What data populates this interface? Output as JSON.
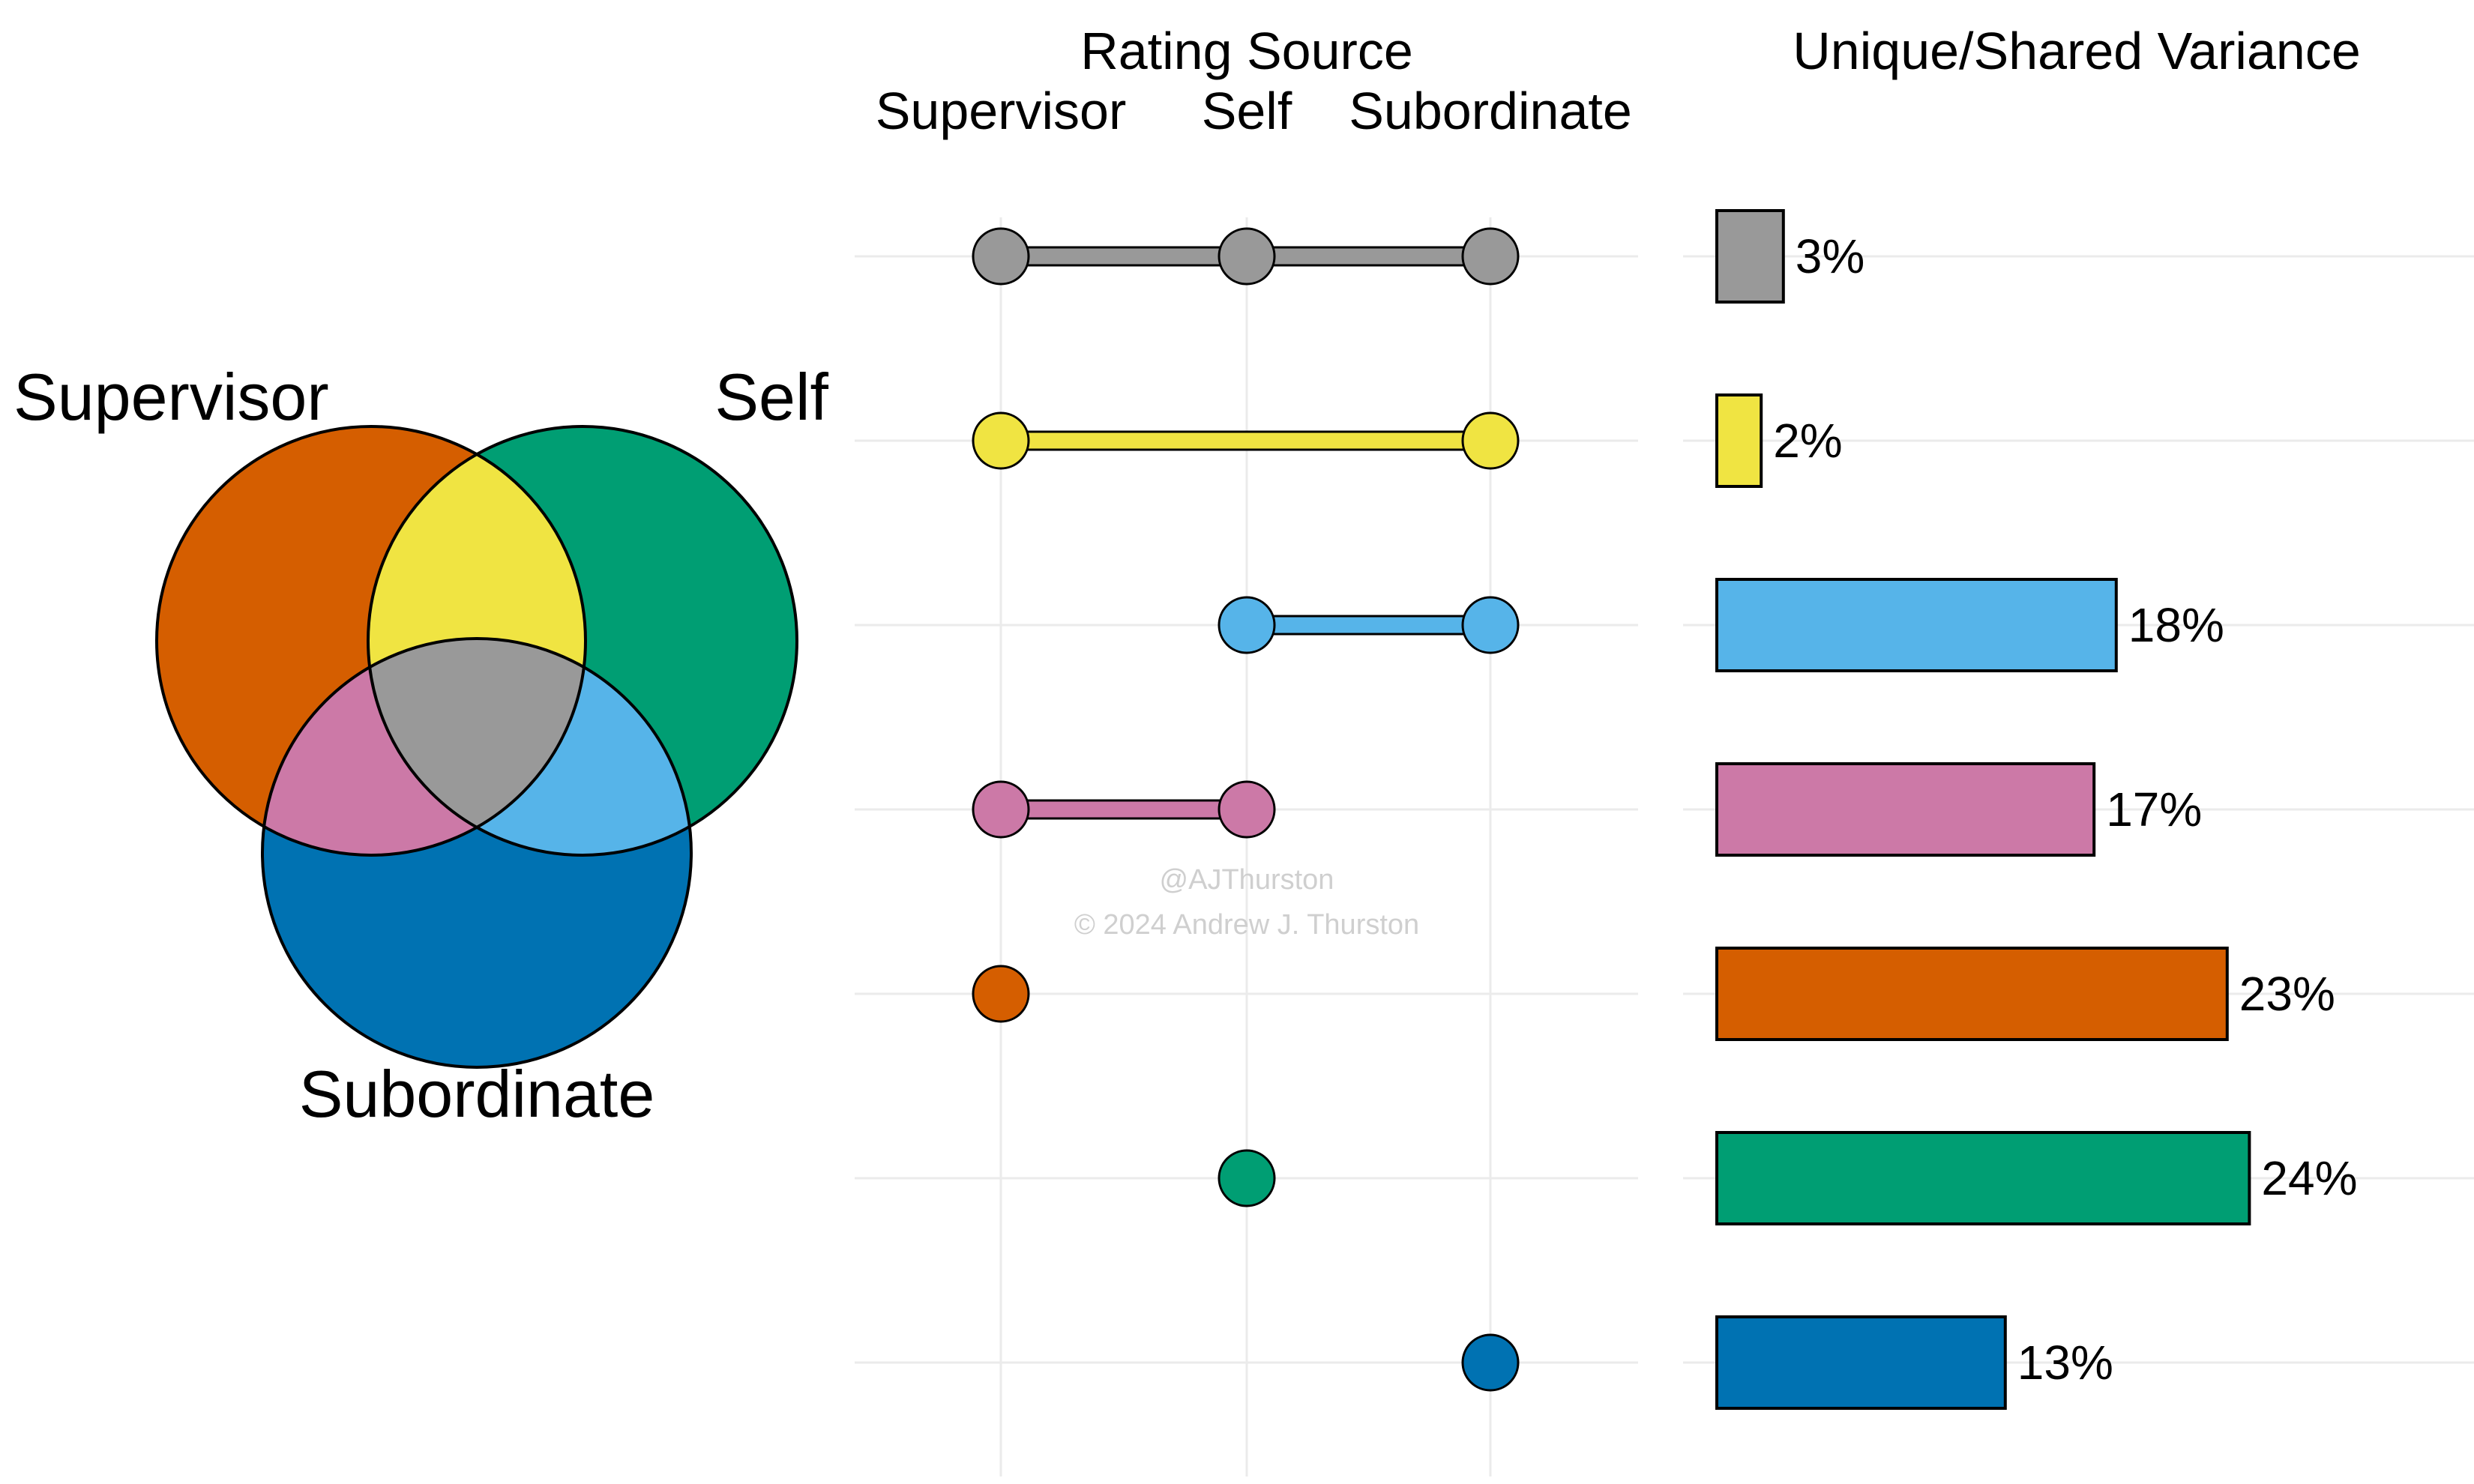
{
  "colors": {
    "supervisor": "#D55E00",
    "self": "#009E73",
    "subordinate": "#0072B2",
    "sup_self": "#F0E442",
    "self_sub": "#56B4E9",
    "sup_sub": "#CC79A7",
    "all": "#999999",
    "grid": "#ebebeb"
  },
  "venn": {
    "labels": {
      "supervisor": "Supervisor",
      "self": "Self",
      "subordinate": "Subordinate"
    }
  },
  "chart_data": {
    "type": "bar",
    "title_matrix": "Rating Source",
    "title_bars": "Unique/Shared Variance",
    "sources": [
      "Supervisor",
      "Self",
      "Subordinate"
    ],
    "rows": [
      {
        "sets": [
          "Supervisor",
          "Self",
          "Subordinate"
        ],
        "value": 3,
        "label": "3%",
        "color_key": "all"
      },
      {
        "sets": [
          "Supervisor",
          "Subordinate"
        ],
        "value": 2,
        "label": "2%",
        "color_key": "sup_self"
      },
      {
        "sets": [
          "Self",
          "Subordinate"
        ],
        "value": 18,
        "label": "18%",
        "color_key": "self_sub"
      },
      {
        "sets": [
          "Supervisor",
          "Self"
        ],
        "value": 17,
        "label": "17%",
        "color_key": "sup_sub"
      },
      {
        "sets": [
          "Supervisor"
        ],
        "value": 23,
        "label": "23%",
        "color_key": "supervisor"
      },
      {
        "sets": [
          "Self"
        ],
        "value": 24,
        "label": "24%",
        "color_key": "self"
      },
      {
        "sets": [
          "Subordinate"
        ],
        "value": 13,
        "label": "13%",
        "color_key": "subordinate"
      }
    ],
    "xlim": [
      0,
      24
    ],
    "grid": true
  },
  "watermark": {
    "handle": "@AJThurston",
    "copyright": "© 2024 Andrew J. Thurston"
  }
}
